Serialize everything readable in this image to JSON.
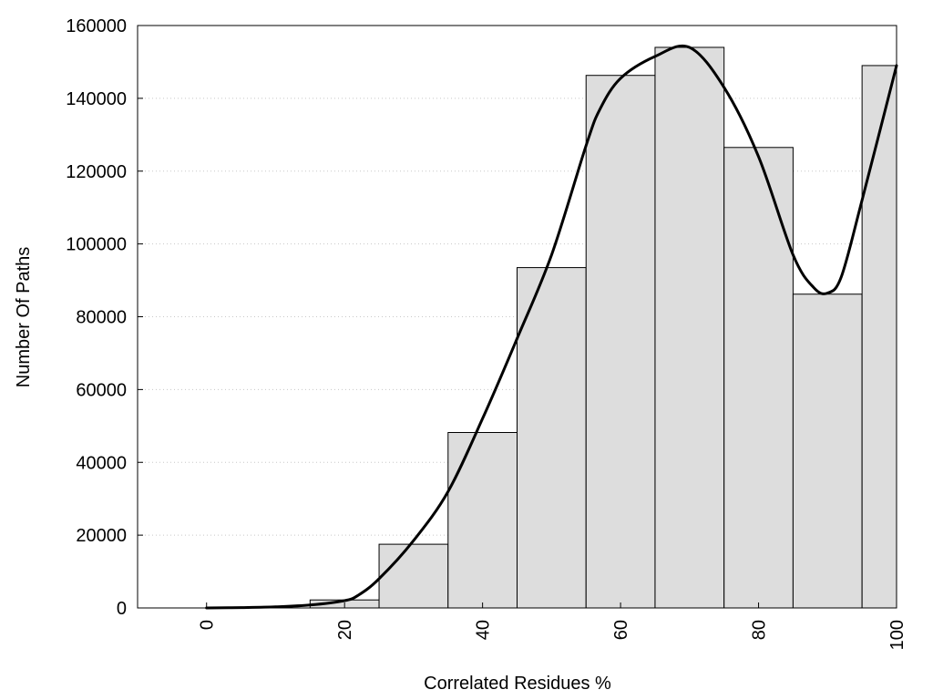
{
  "chart_data": {
    "type": "bar",
    "title": "",
    "xlabel": "Correlated Residues %",
    "ylabel": "Number Of Paths",
    "xlim": [
      -10,
      100
    ],
    "ylim": [
      0,
      160000
    ],
    "x_ticks": [
      0,
      20,
      40,
      60,
      80,
      100
    ],
    "y_ticks": [
      0,
      20000,
      40000,
      60000,
      80000,
      100000,
      120000,
      140000,
      160000
    ],
    "grid": "horizontal dotted",
    "bar_color": "#dddddd",
    "bar_edge_color": "#000000",
    "line_color": "#000000",
    "bins": [
      {
        "x0": 0,
        "x1": 10,
        "value": 200
      },
      {
        "x0": 10,
        "x1": 15,
        "value": 0
      },
      {
        "x0": 15,
        "x1": 25,
        "value": 2200
      },
      {
        "x0": 25,
        "x1": 35,
        "value": 17500
      },
      {
        "x0": 35,
        "x1": 45,
        "value": 48200
      },
      {
        "x0": 45,
        "x1": 55,
        "value": 93500
      },
      {
        "x0": 55,
        "x1": 65,
        "value": 146300
      },
      {
        "x0": 65,
        "x1": 75,
        "value": 154000
      },
      {
        "x0": 75,
        "x1": 85,
        "value": 126500
      },
      {
        "x0": 85,
        "x1": 95,
        "value": 86200
      },
      {
        "x0": 95,
        "x1": 100,
        "value": 149000
      }
    ],
    "curve": {
      "x": [
        0,
        5,
        10,
        15,
        20,
        22,
        25,
        30,
        35,
        40,
        45,
        50,
        55,
        57,
        60,
        65,
        70,
        75,
        80,
        85,
        88,
        90,
        92,
        95,
        100
      ],
      "y": [
        0,
        100,
        300,
        800,
        2000,
        3500,
        8000,
        18500,
        32000,
        52000,
        74000,
        97000,
        127000,
        137000,
        145500,
        151500,
        154000,
        143000,
        124000,
        97000,
        88000,
        86500,
        91000,
        112000,
        149000
      ]
    }
  }
}
